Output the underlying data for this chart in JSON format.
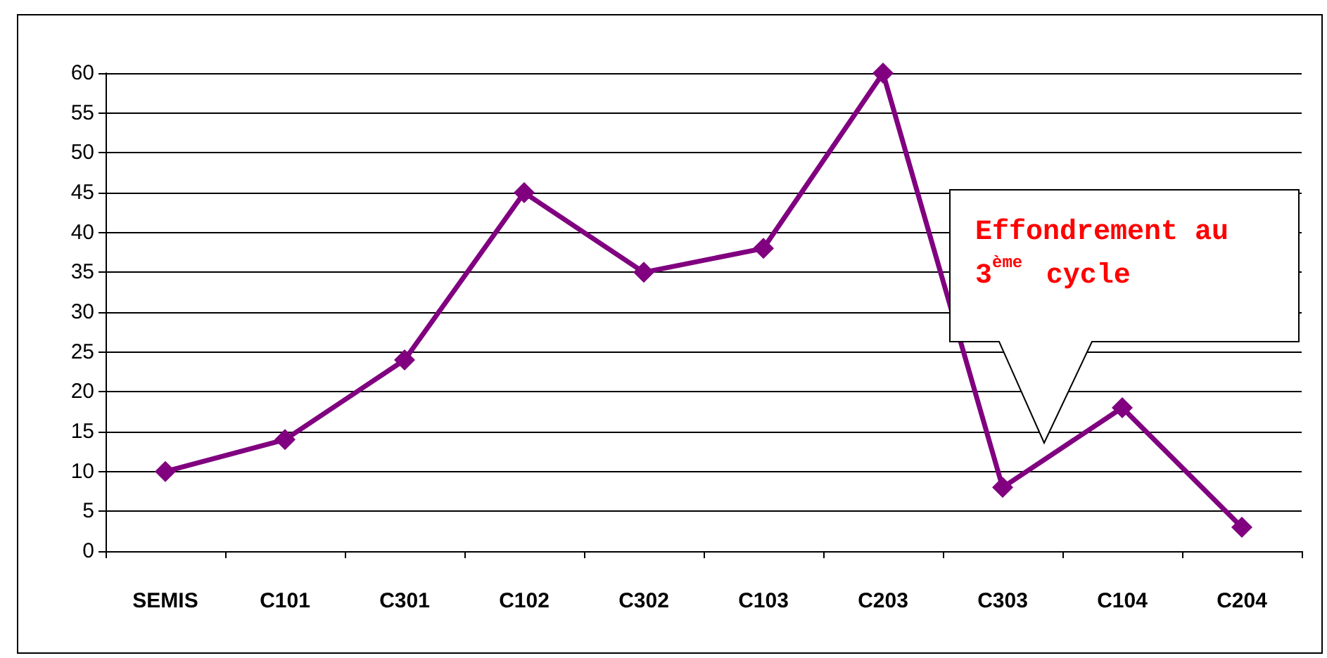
{
  "chart_data": {
    "type": "line",
    "categories": [
      "SEMIS",
      "C101",
      "C301",
      "C102",
      "C302",
      "C103",
      "C203",
      "C303",
      "C104",
      "C204"
    ],
    "values": [
      10,
      14,
      24,
      45,
      35,
      38,
      60,
      8,
      18,
      3
    ],
    "color": "#800080",
    "marker": "diamond",
    "line_style": "solid",
    "ylim": [
      0,
      60
    ],
    "yticks": [
      0,
      5,
      10,
      15,
      20,
      25,
      30,
      35,
      40,
      45,
      50,
      55,
      60
    ],
    "grid": "y",
    "annotations": [
      "Effondrement au 3$^{ème}$ cycle"
    ]
  }
}
